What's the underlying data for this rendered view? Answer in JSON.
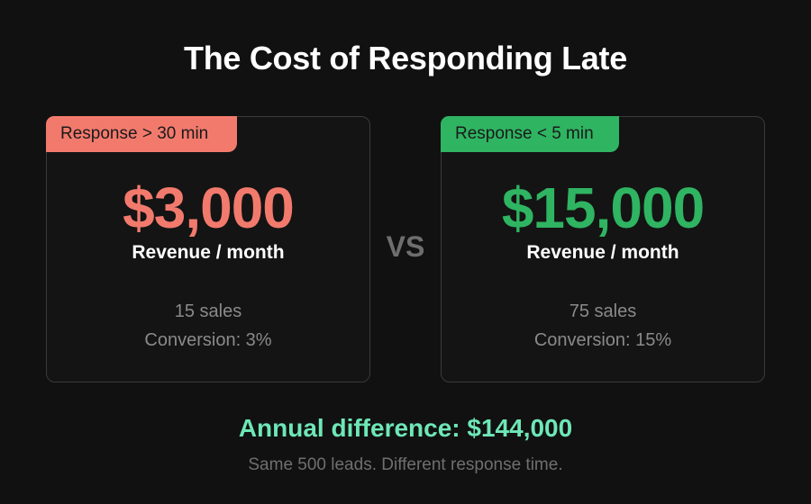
{
  "title": "The Cost of Responding Late",
  "left_card": {
    "badge": "Response > 30 min",
    "amount": "$3,000",
    "metric": "Revenue / month",
    "sales": "15 sales",
    "conversion": "Conversion: 3%"
  },
  "right_card": {
    "badge": "Response < 5 min",
    "amount": "$15,000",
    "metric": "Revenue / month",
    "sales": "75 sales",
    "conversion": "Conversion: 15%"
  },
  "vs": "VS",
  "annual_difference": "Annual difference: $144,000",
  "footnote": "Same 500 leads. Different response time.",
  "colors": {
    "background": "#111111",
    "bad": "#f27a6d",
    "good": "#2fb462",
    "highlight": "#6ee7b7",
    "muted": "#8a8a8a"
  }
}
